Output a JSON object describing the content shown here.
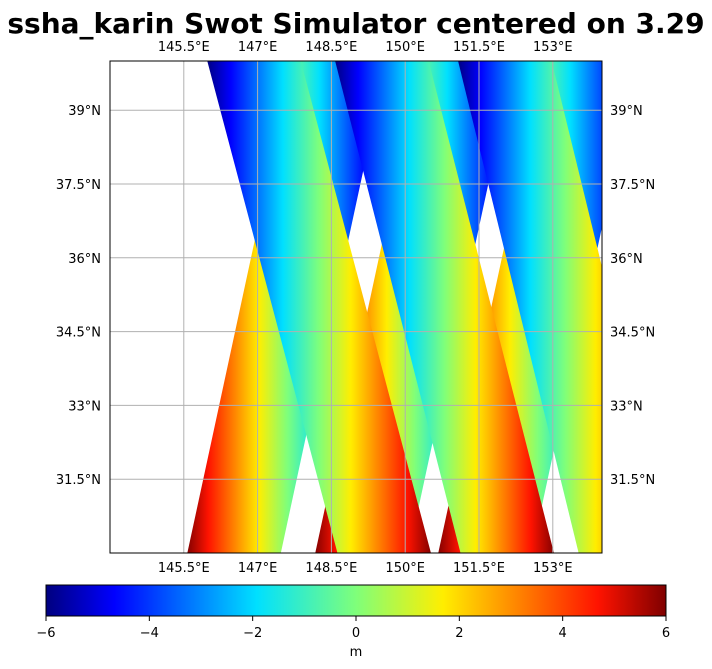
{
  "chart_data": {
    "type": "heatmap",
    "title": "ssha_karin Swot Simulator centered on 3.29",
    "xlabel": "",
    "ylabel": "",
    "x_ticks": [
      "145.5°E",
      "147°E",
      "148.5°E",
      "150°E",
      "151.5°E",
      "153°E"
    ],
    "x_tick_values": [
      145.5,
      147,
      148.5,
      150,
      151.5,
      153
    ],
    "y_ticks": [
      "39°N",
      "37.5°N",
      "36°N",
      "34.5°N",
      "33°N",
      "31.5°N"
    ],
    "y_tick_values": [
      39,
      37.5,
      36,
      34.5,
      33,
      31.5
    ],
    "xlim": [
      144,
      154
    ],
    "ylim": [
      30,
      40
    ],
    "grid": true,
    "colormap": "jet",
    "colorbar": {
      "orientation": "horizontal",
      "location": "bottom",
      "vmin": -6,
      "vmax": 6,
      "ticks": [
        "−6",
        "−4",
        "−2",
        "0",
        "2",
        "4",
        "6"
      ],
      "tick_values": [
        -6,
        -4,
        -2,
        0,
        2,
        4,
        6
      ],
      "label": "m"
    },
    "swaths": [
      {
        "lon_bottom": 146.5,
        "lon_top": 148.7,
        "color_start": "high",
        "note": ""
      },
      {
        "lon_bottom": 149.1,
        "lon_top": 151.3,
        "color_start": "high",
        "note": ""
      },
      {
        "lon_bottom": 151.6,
        "lon_top": 153.8,
        "color_start": "high",
        "note": ""
      },
      {
        "lon_bottom": 149.6,
        "lon_top": 146.9,
        "color_start": "low",
        "note": ""
      },
      {
        "lon_bottom": 152.1,
        "lon_top": 149.5,
        "color_start": "low",
        "note": ""
      },
      {
        "lon_bottom": 154.5,
        "lon_top": 152.0,
        "color_start": "low",
        "note": ""
      }
    ]
  }
}
